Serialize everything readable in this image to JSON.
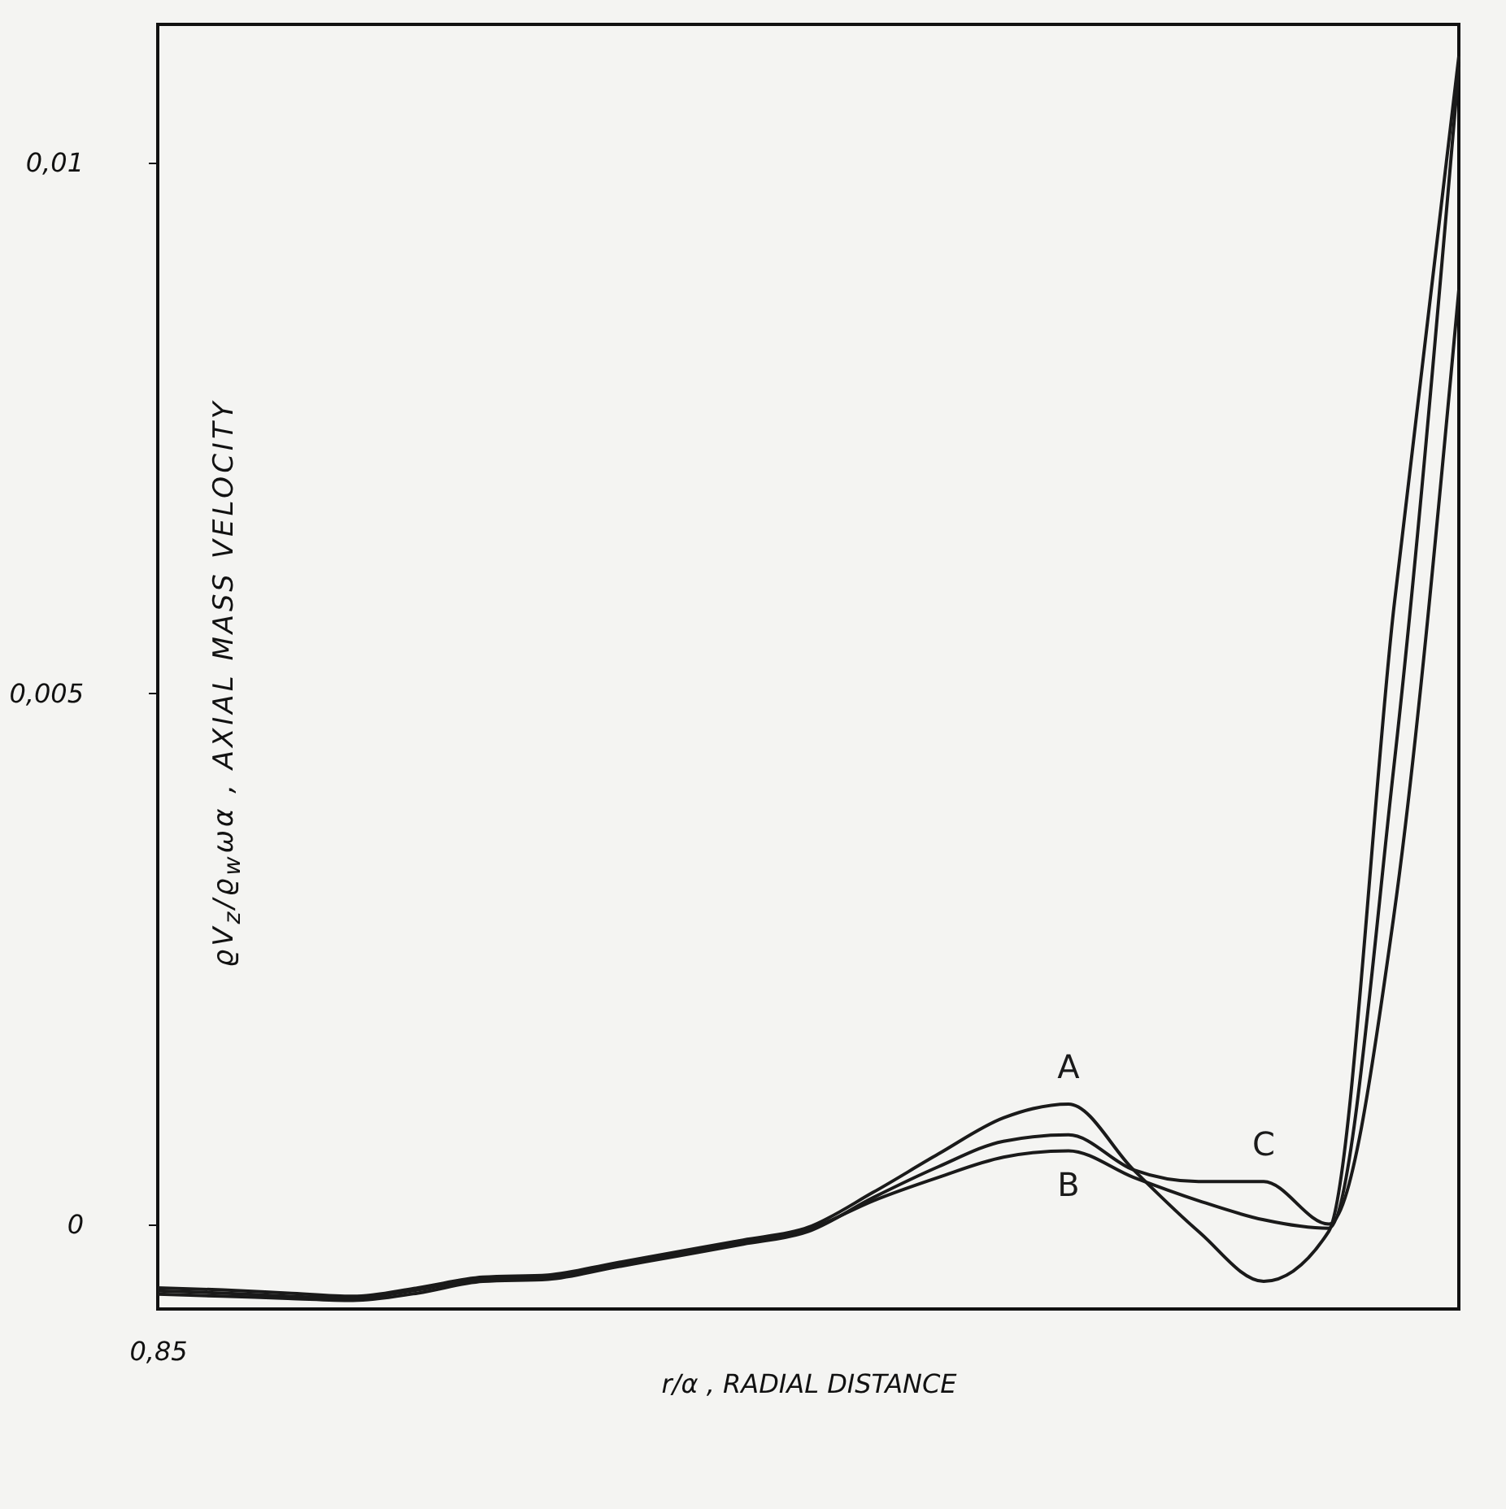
{
  "chart_data": {
    "type": "line",
    "xlabel": "r/α , RADIAL DISTANCE",
    "ylabel": "ϱV$_{z}$/ϱ$_{w}$ωα , AXIAL MASS VELOCITY",
    "categories": [
      "0,85",
      null,
      null,
      null,
      null,
      null,
      null,
      null,
      null,
      null,
      null,
      null,
      null,
      null,
      null,
      null,
      null,
      null,
      null,
      null,
      null
    ],
    "ylim": [
      -0.0008,
      0.0113
    ],
    "yticks": [
      {
        "value": 0,
        "label": "0"
      },
      {
        "value": 0.005,
        "label": "0,005"
      },
      {
        "value": 0.01,
        "label": "0,01"
      }
    ],
    "series": [
      {
        "name": "A",
        "color": "#1a1a1a",
        "values": [
          -0.0006,
          -0.00062,
          -0.00065,
          -0.00068,
          -0.0006,
          -0.0005,
          -0.00048,
          -0.00037,
          -0.00026,
          -0.00015,
          -3e-05,
          0.0003,
          0.00066,
          0.001,
          0.00113,
          0.00051,
          -7e-05,
          -0.00054,
          -7e-05,
          0.0058,
          0.011
        ]
      },
      {
        "name": "B",
        "color": "#1a1a1a",
        "values": [
          -0.00063,
          -0.00065,
          -0.00068,
          -0.0007,
          -0.00062,
          -0.00052,
          -0.0005,
          -0.00039,
          -0.00028,
          -0.00017,
          -5e-05,
          0.00022,
          0.00044,
          0.00063,
          0.00069,
          0.00044,
          0.00022,
          4e-05,
          -4e-05,
          0.0043,
          0.0109
        ]
      },
      {
        "name": "C",
        "color": "#1a1a1a",
        "values": [
          -0.00066,
          -0.00068,
          -0.0007,
          -0.00072,
          -0.00065,
          -0.00054,
          -0.00052,
          -0.00041,
          -0.0003,
          -0.00019,
          -7e-05,
          0.00025,
          0.00054,
          0.00078,
          0.00084,
          0.00051,
          0.0004,
          0.0004,
          0,
          0.0029,
          0.0088
        ]
      }
    ]
  }
}
